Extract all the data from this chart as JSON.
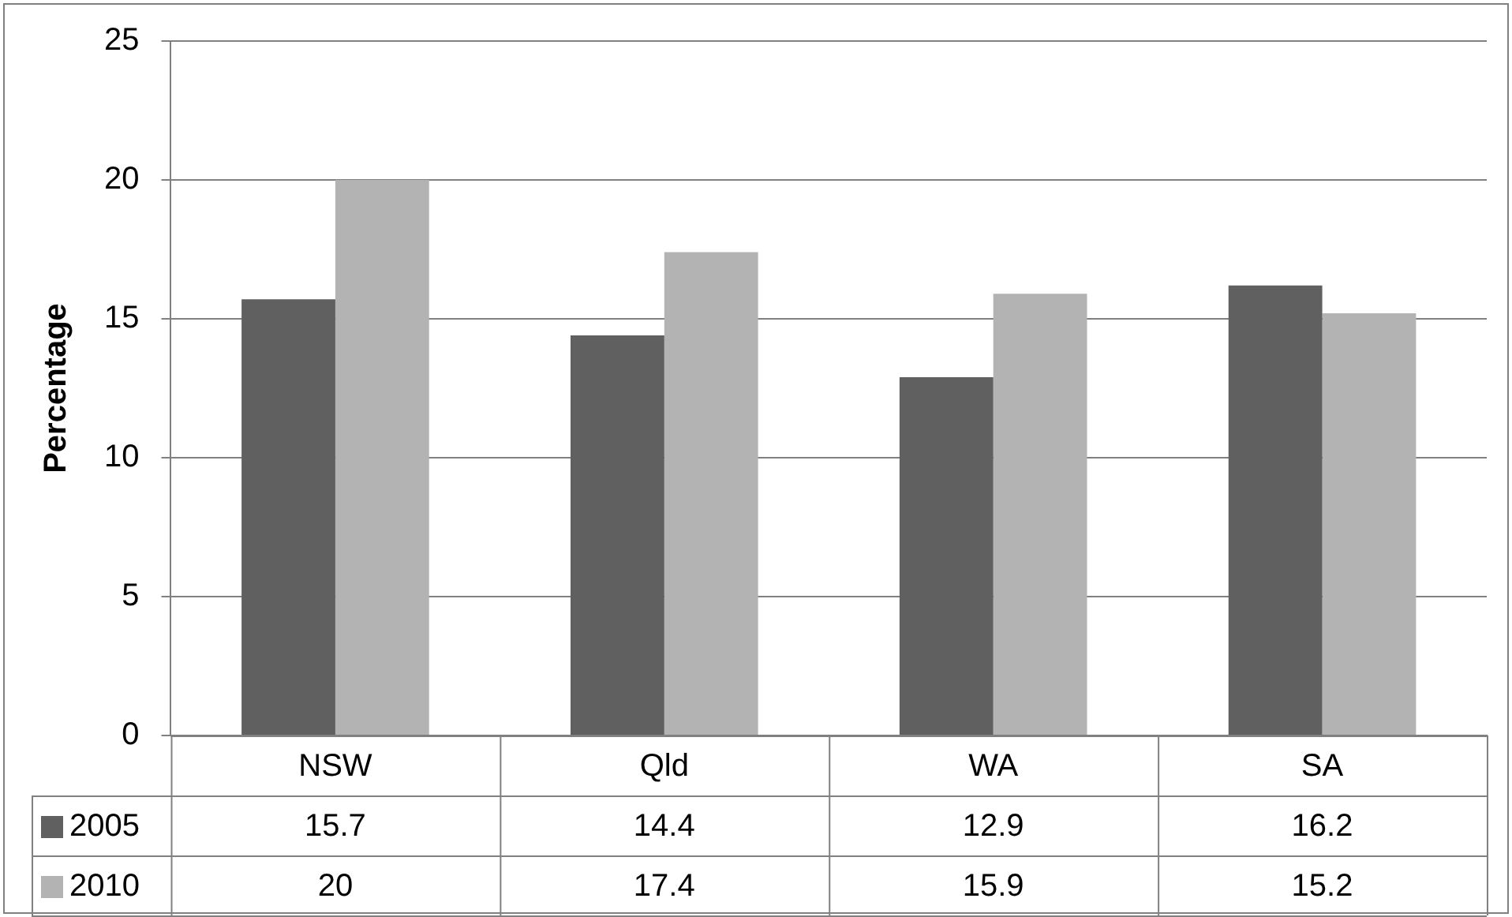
{
  "chart_data": {
    "type": "bar",
    "ylabel": "Percentage",
    "categories": [
      "NSW",
      "Qld",
      "WA",
      "SA"
    ],
    "series": [
      {
        "name": "2005",
        "color": "#606060",
        "values": [
          15.7,
          14.4,
          12.9,
          16.2
        ]
      },
      {
        "name": "2010",
        "color": "#b3b3b3",
        "values": [
          20,
          17.4,
          15.9,
          15.2
        ]
      }
    ],
    "ylim": [
      0,
      25
    ],
    "yticks": [
      0,
      5,
      10,
      15,
      20,
      25
    ],
    "grid": "y",
    "legend": "bottom",
    "data_labels": true
  }
}
